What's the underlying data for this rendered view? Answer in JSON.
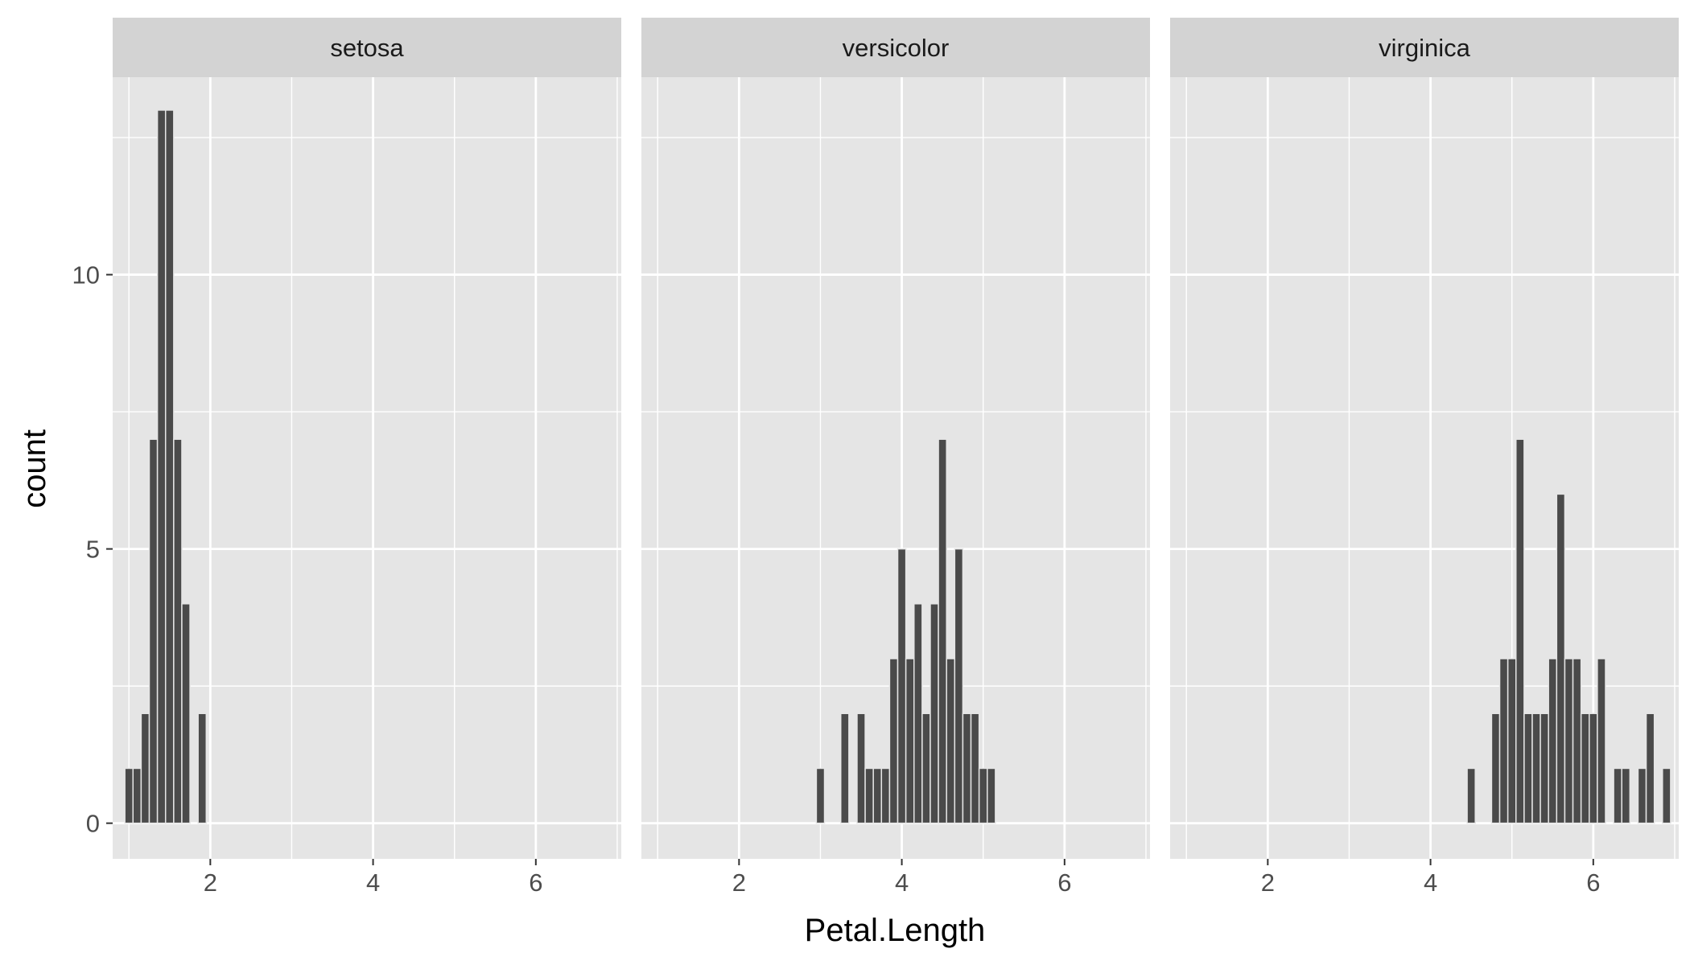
{
  "chart_data": {
    "type": "bar",
    "subtype": "histogram",
    "xlabel": "Petal.Length",
    "ylabel": "count",
    "xlim": [
      0.8,
      7.05
    ],
    "ylim": [
      -0.65,
      13.6
    ],
    "x_ticks": [
      2,
      4,
      6
    ],
    "x_minor_ticks": [
      1,
      3,
      5,
      7
    ],
    "y_ticks": [
      0,
      5,
      10
    ],
    "y_minor_ticks": [
      2.5,
      7.5,
      12.5
    ],
    "bin_width": 0.1,
    "grid": true,
    "colors": {
      "panel_background": "#e5e5e5",
      "strip_background": "#d3d3d3",
      "bar_fill": "#4a4a4a",
      "grid_line": "#ffffff"
    },
    "facets": [
      {
        "name": "setosa",
        "bins": [
          {
            "x": 1.0,
            "count": 1
          },
          {
            "x": 1.1,
            "count": 1
          },
          {
            "x": 1.2,
            "count": 2
          },
          {
            "x": 1.3,
            "count": 7
          },
          {
            "x": 1.4,
            "count": 13
          },
          {
            "x": 1.5,
            "count": 13
          },
          {
            "x": 1.6,
            "count": 7
          },
          {
            "x": 1.7,
            "count": 4
          },
          {
            "x": 1.9,
            "count": 2
          }
        ]
      },
      {
        "name": "versicolor",
        "bins": [
          {
            "x": 3.0,
            "count": 1
          },
          {
            "x": 3.3,
            "count": 2
          },
          {
            "x": 3.5,
            "count": 2
          },
          {
            "x": 3.6,
            "count": 1
          },
          {
            "x": 3.7,
            "count": 1
          },
          {
            "x": 3.8,
            "count": 1
          },
          {
            "x": 3.9,
            "count": 3
          },
          {
            "x": 4.0,
            "count": 5
          },
          {
            "x": 4.1,
            "count": 3
          },
          {
            "x": 4.2,
            "count": 4
          },
          {
            "x": 4.3,
            "count": 2
          },
          {
            "x": 4.4,
            "count": 4
          },
          {
            "x": 4.5,
            "count": 7
          },
          {
            "x": 4.6,
            "count": 3
          },
          {
            "x": 4.7,
            "count": 5
          },
          {
            "x": 4.8,
            "count": 2
          },
          {
            "x": 4.9,
            "count": 2
          },
          {
            "x": 5.0,
            "count": 1
          },
          {
            "x": 5.1,
            "count": 1
          }
        ]
      },
      {
        "name": "virginica",
        "bins": [
          {
            "x": 4.5,
            "count": 1
          },
          {
            "x": 4.8,
            "count": 2
          },
          {
            "x": 4.9,
            "count": 3
          },
          {
            "x": 5.0,
            "count": 3
          },
          {
            "x": 5.1,
            "count": 7
          },
          {
            "x": 5.2,
            "count": 2
          },
          {
            "x": 5.3,
            "count": 2
          },
          {
            "x": 5.4,
            "count": 2
          },
          {
            "x": 5.5,
            "count": 3
          },
          {
            "x": 5.6,
            "count": 6
          },
          {
            "x": 5.7,
            "count": 3
          },
          {
            "x": 5.8,
            "count": 3
          },
          {
            "x": 5.9,
            "count": 2
          },
          {
            "x": 6.0,
            "count": 2
          },
          {
            "x": 6.1,
            "count": 3
          },
          {
            "x": 6.3,
            "count": 1
          },
          {
            "x": 6.4,
            "count": 1
          },
          {
            "x": 6.6,
            "count": 1
          },
          {
            "x": 6.7,
            "count": 2
          },
          {
            "x": 6.9,
            "count": 1
          }
        ]
      }
    ]
  }
}
